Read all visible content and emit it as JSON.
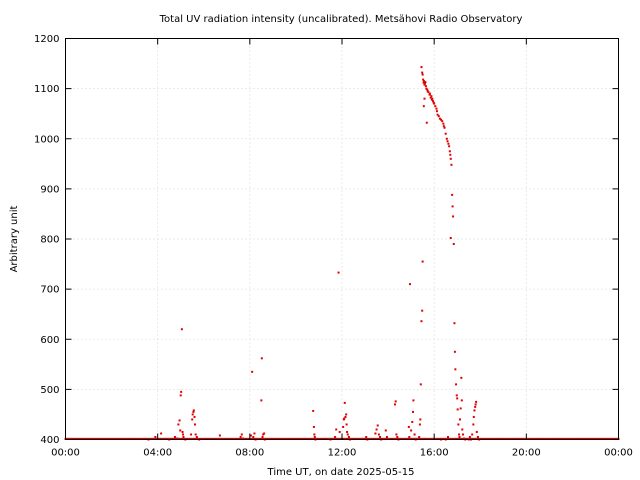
{
  "chart_data": {
    "type": "scatter",
    "title": "Total UV radiation intensity (uncalibrated). Metsähovi Radio Observatory",
    "xlabel": "Time UT, on date 2025-05-15",
    "ylabel": "Arbitrary unit",
    "xlim": [
      0,
      24
    ],
    "ylim": [
      400,
      1200
    ],
    "x_ticks": [
      0,
      4,
      8,
      12,
      16,
      20,
      24
    ],
    "x_tick_labels": [
      "00:00",
      "04:00",
      "08:00",
      "12:00",
      "16:00",
      "20:00",
      "00:00"
    ],
    "y_ticks": [
      400,
      500,
      600,
      700,
      800,
      900,
      1000,
      1100,
      1200
    ],
    "grid": true,
    "series": [
      {
        "color": "#e00000",
        "baseline": {
          "y": 400,
          "x_start": 0,
          "x_end": 24,
          "step": 0.05
        },
        "points": [
          [
            3.6,
            400
          ],
          [
            3.9,
            405
          ],
          [
            4.15,
            412
          ],
          [
            4.5,
            400
          ],
          [
            4.75,
            405
          ],
          [
            4.85,
            402
          ],
          [
            4.9,
            430
          ],
          [
            4.95,
            438
          ],
          [
            4.98,
            418
          ],
          [
            5.0,
            488
          ],
          [
            5.02,
            495
          ],
          [
            5.05,
            620
          ],
          [
            5.08,
            415
          ],
          [
            5.1,
            410
          ],
          [
            5.12,
            405
          ],
          [
            5.2,
            400
          ],
          [
            5.45,
            410
          ],
          [
            5.5,
            440
          ],
          [
            5.52,
            450
          ],
          [
            5.55,
            455
          ],
          [
            5.57,
            458
          ],
          [
            5.6,
            445
          ],
          [
            5.62,
            430
          ],
          [
            5.65,
            410
          ],
          [
            5.7,
            405
          ],
          [
            5.8,
            400
          ],
          [
            6.7,
            408
          ],
          [
            7.6,
            405
          ],
          [
            7.65,
            410
          ],
          [
            7.7,
            402
          ],
          [
            8.05,
            408
          ],
          [
            8.1,
            535
          ],
          [
            8.15,
            405
          ],
          [
            8.2,
            412
          ],
          [
            8.25,
            400
          ],
          [
            8.5,
            478
          ],
          [
            8.52,
            562
          ],
          [
            8.55,
            405
          ],
          [
            8.58,
            410
          ],
          [
            8.62,
            412
          ],
          [
            8.65,
            400
          ],
          [
            10.75,
            457
          ],
          [
            10.78,
            425
          ],
          [
            10.8,
            410
          ],
          [
            10.82,
            405
          ],
          [
            10.85,
            400
          ],
          [
            11.5,
            400
          ],
          [
            11.7,
            405
          ],
          [
            11.75,
            420
          ],
          [
            11.85,
            733
          ],
          [
            11.9,
            415
          ],
          [
            12.05,
            425
          ],
          [
            12.08,
            440
          ],
          [
            12.1,
            442
          ],
          [
            12.12,
            473
          ],
          [
            12.15,
            445
          ],
          [
            12.18,
            450
          ],
          [
            12.2,
            430
          ],
          [
            12.22,
            415
          ],
          [
            12.25,
            410
          ],
          [
            12.3,
            405
          ],
          [
            12.35,
            400
          ],
          [
            13.05,
            405
          ],
          [
            13.1,
            400
          ],
          [
            13.45,
            412
          ],
          [
            13.5,
            420
          ],
          [
            13.55,
            428
          ],
          [
            13.6,
            410
          ],
          [
            13.65,
            405
          ],
          [
            13.7,
            400
          ],
          [
            13.9,
            418
          ],
          [
            13.95,
            405
          ],
          [
            14.3,
            470
          ],
          [
            14.33,
            476
          ],
          [
            14.36,
            410
          ],
          [
            14.4,
            405
          ],
          [
            14.45,
            400
          ],
          [
            14.9,
            425
          ],
          [
            14.92,
            405
          ],
          [
            14.95,
            710
          ],
          [
            15.0,
            418
          ],
          [
            15.05,
            435
          ],
          [
            15.08,
            455
          ],
          [
            15.1,
            478
          ],
          [
            15.15,
            410
          ],
          [
            15.2,
            400
          ],
          [
            15.35,
            405
          ],
          [
            15.38,
            430
          ],
          [
            15.4,
            440
          ],
          [
            15.42,
            510
          ],
          [
            15.45,
            636
          ],
          [
            15.48,
            657
          ],
          [
            15.5,
            755
          ],
          [
            15.45,
            1143
          ],
          [
            15.48,
            1132
          ],
          [
            15.5,
            1128
          ],
          [
            15.52,
            1118
          ],
          [
            15.54,
            1112
          ],
          [
            15.56,
            1115
          ],
          [
            15.58,
            1108
          ],
          [
            15.6,
            1110
          ],
          [
            15.62,
            1113
          ],
          [
            15.64,
            1105
          ],
          [
            15.66,
            1100
          ],
          [
            15.68,
            1032
          ],
          [
            15.7,
            1098
          ],
          [
            15.72,
            1095
          ],
          [
            15.55,
            1065
          ],
          [
            15.58,
            1080
          ],
          [
            15.75,
            1093
          ],
          [
            15.8,
            1088
          ],
          [
            15.82,
            1090
          ],
          [
            15.85,
            1082
          ],
          [
            15.88,
            1085
          ],
          [
            15.9,
            1078
          ],
          [
            15.92,
            1080
          ],
          [
            15.95,
            1075
          ],
          [
            15.98,
            1072
          ],
          [
            16.0,
            1070
          ],
          [
            16.05,
            1065
          ],
          [
            16.1,
            1060
          ],
          [
            16.12,
            1055
          ],
          [
            16.15,
            1048
          ],
          [
            16.2,
            1045
          ],
          [
            16.25,
            1040
          ],
          [
            16.3,
            1038
          ],
          [
            16.35,
            1035
          ],
          [
            16.4,
            1030
          ],
          [
            16.42,
            1025
          ],
          [
            16.45,
            1022
          ],
          [
            16.5,
            1010
          ],
          [
            16.55,
            1000
          ],
          [
            16.58,
            995
          ],
          [
            16.62,
            990
          ],
          [
            16.65,
            985
          ],
          [
            16.68,
            975
          ],
          [
            16.7,
            968
          ],
          [
            16.72,
            960
          ],
          [
            16.75,
            948
          ],
          [
            16.78,
            888
          ],
          [
            16.8,
            865
          ],
          [
            16.82,
            845
          ],
          [
            16.72,
            802
          ],
          [
            16.85,
            790
          ],
          [
            16.88,
            632
          ],
          [
            16.9,
            575
          ],
          [
            16.92,
            540
          ],
          [
            16.95,
            510
          ],
          [
            16.98,
            488
          ],
          [
            17.0,
            482
          ],
          [
            17.02,
            460
          ],
          [
            17.05,
            430
          ],
          [
            17.08,
            410
          ],
          [
            17.1,
            405
          ],
          [
            17.12,
            440
          ],
          [
            17.15,
            462
          ],
          [
            17.18,
            523
          ],
          [
            17.2,
            478
          ],
          [
            17.22,
            420
          ],
          [
            17.25,
            410
          ],
          [
            17.3,
            402
          ],
          [
            17.35,
            400
          ],
          [
            17.5,
            400
          ],
          [
            17.55,
            405
          ],
          [
            17.6,
            400
          ],
          [
            17.65,
            410
          ],
          [
            17.7,
            430
          ],
          [
            17.72,
            445
          ],
          [
            17.75,
            458
          ],
          [
            17.78,
            465
          ],
          [
            17.8,
            470
          ],
          [
            17.82,
            475
          ],
          [
            17.85,
            415
          ],
          [
            17.9,
            405
          ],
          [
            17.95,
            400
          ],
          [
            16.3,
            400
          ],
          [
            16.5,
            400
          ],
          [
            16.6,
            405
          ]
        ]
      }
    ]
  }
}
